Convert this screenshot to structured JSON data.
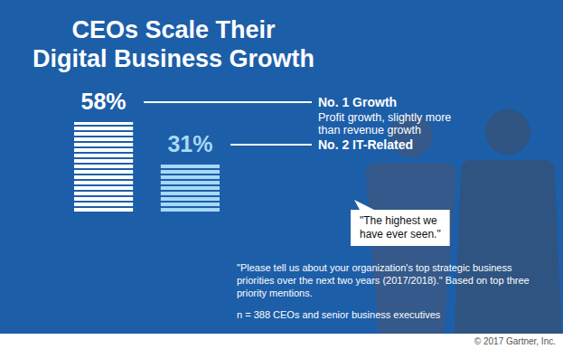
{
  "chart_data": {
    "type": "bar",
    "title": "CEOs Scale Their Digital Business Growth",
    "categories": [
      "No. 1 Growth",
      "No. 2 IT-Related"
    ],
    "values": [
      58,
      31
    ],
    "value_labels": [
      "58%",
      "31%"
    ],
    "data_labels": true,
    "tick_labels": false,
    "colors": [
      "#ffffff",
      "#a6d9f7"
    ],
    "annotations": [
      "Profit growth, slightly more than revenue growth",
      "\"The highest we have ever seen.\"",
      "\"Please tell us about your organization's top strategic business priorities over the next two years (2017/2018).\" Based on top three priority mentions.",
      "n = 388 CEOs and senior business executives",
      "© 2017 Gartner, Inc."
    ]
  }
}
